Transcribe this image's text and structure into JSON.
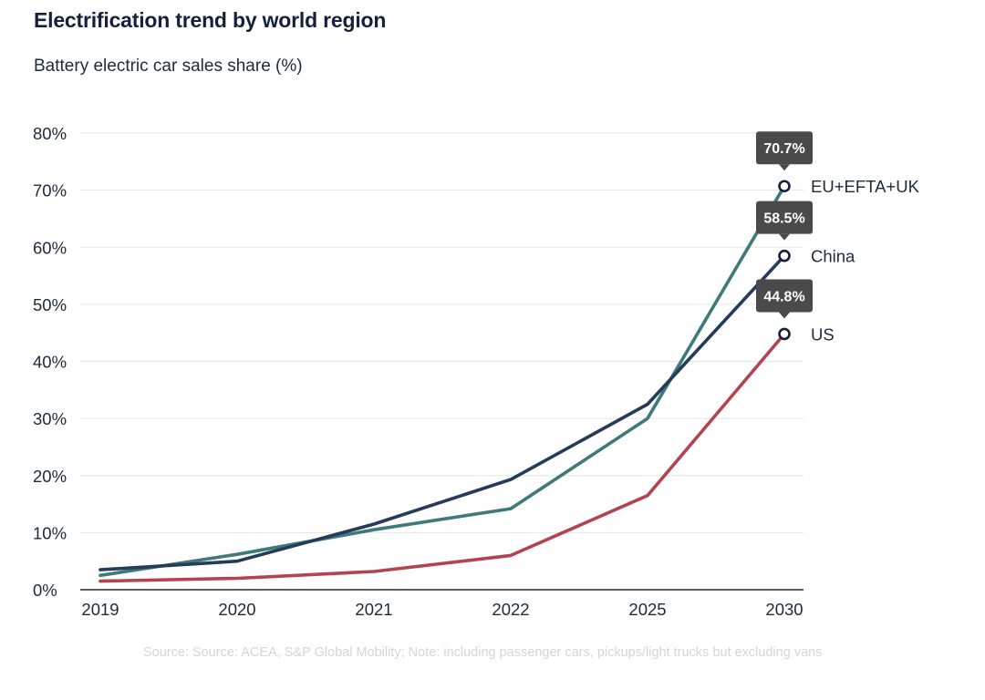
{
  "title": "Electrification trend by world region",
  "subtitle": "Battery electric car sales share (%)",
  "source": "Source:  Source: ACEA, S&P Global Mobility; Note: including passenger cars, pickups/light trucks but excluding vans",
  "chart_data": {
    "type": "line",
    "title": "Electrification trend by world region",
    "subtitle": "Battery electric car sales share (%)",
    "categories": [
      "2019",
      "2020",
      "2021",
      "2022",
      "2025",
      "2030"
    ],
    "y_ticks": [
      "0%",
      "10%",
      "20%",
      "30%",
      "40%",
      "50%",
      "60%",
      "70%",
      "80%"
    ],
    "ylim": [
      0,
      80
    ],
    "grid": "horizontal",
    "series": [
      {
        "name": "US",
        "color": "#b5434f",
        "values": [
          1.5,
          2.0,
          3.2,
          6.0,
          16.5,
          44.8
        ],
        "end_label": "44.8%"
      },
      {
        "name": "EU+EFTA+UK",
        "color": "#3e7a78",
        "values": [
          2.5,
          6.2,
          10.5,
          14.2,
          30.0,
          70.7
        ],
        "end_label": "70.7%"
      },
      {
        "name": "China",
        "color": "#253b59",
        "values": [
          3.5,
          5.0,
          11.5,
          19.3,
          32.5,
          58.5
        ],
        "end_label": "58.5%"
      }
    ]
  }
}
